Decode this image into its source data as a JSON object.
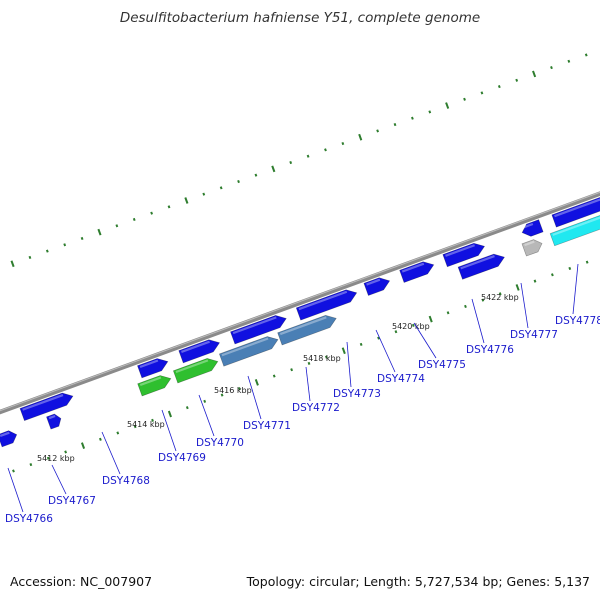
{
  "title": "Desulfitobacterium hafniense Y51, complete genome",
  "footer": {
    "accession_label": "Accession: NC_007907",
    "summary": "Topology: circular; Length: 5,727,534 bp; Genes: 5,137"
  },
  "colors": {
    "backbone": "#8a8a8a",
    "tick": "#2e7d2e",
    "gene_blue": "#1010e0",
    "gene_steel": "#4a7fb5",
    "gene_green": "#2fbf2f",
    "gene_cyan": "#20e8f0",
    "gene_gray": "#b8b8b8",
    "label": "#1a1acc"
  },
  "scale_labels": [
    "5412 kbp",
    "5414 kbp",
    "5416 kbp",
    "5418 kbp",
    "5420 kbp",
    "5422 kbp"
  ],
  "gene_labels": [
    "DSY4766",
    "DSY4767",
    "DSY4768",
    "DSY4769",
    "DSY4770",
    "DSY4771",
    "DSY4772",
    "DSY4773",
    "DSY4774",
    "DSY4775",
    "DSY4776",
    "DSY4777",
    "DSY4778"
  ]
}
